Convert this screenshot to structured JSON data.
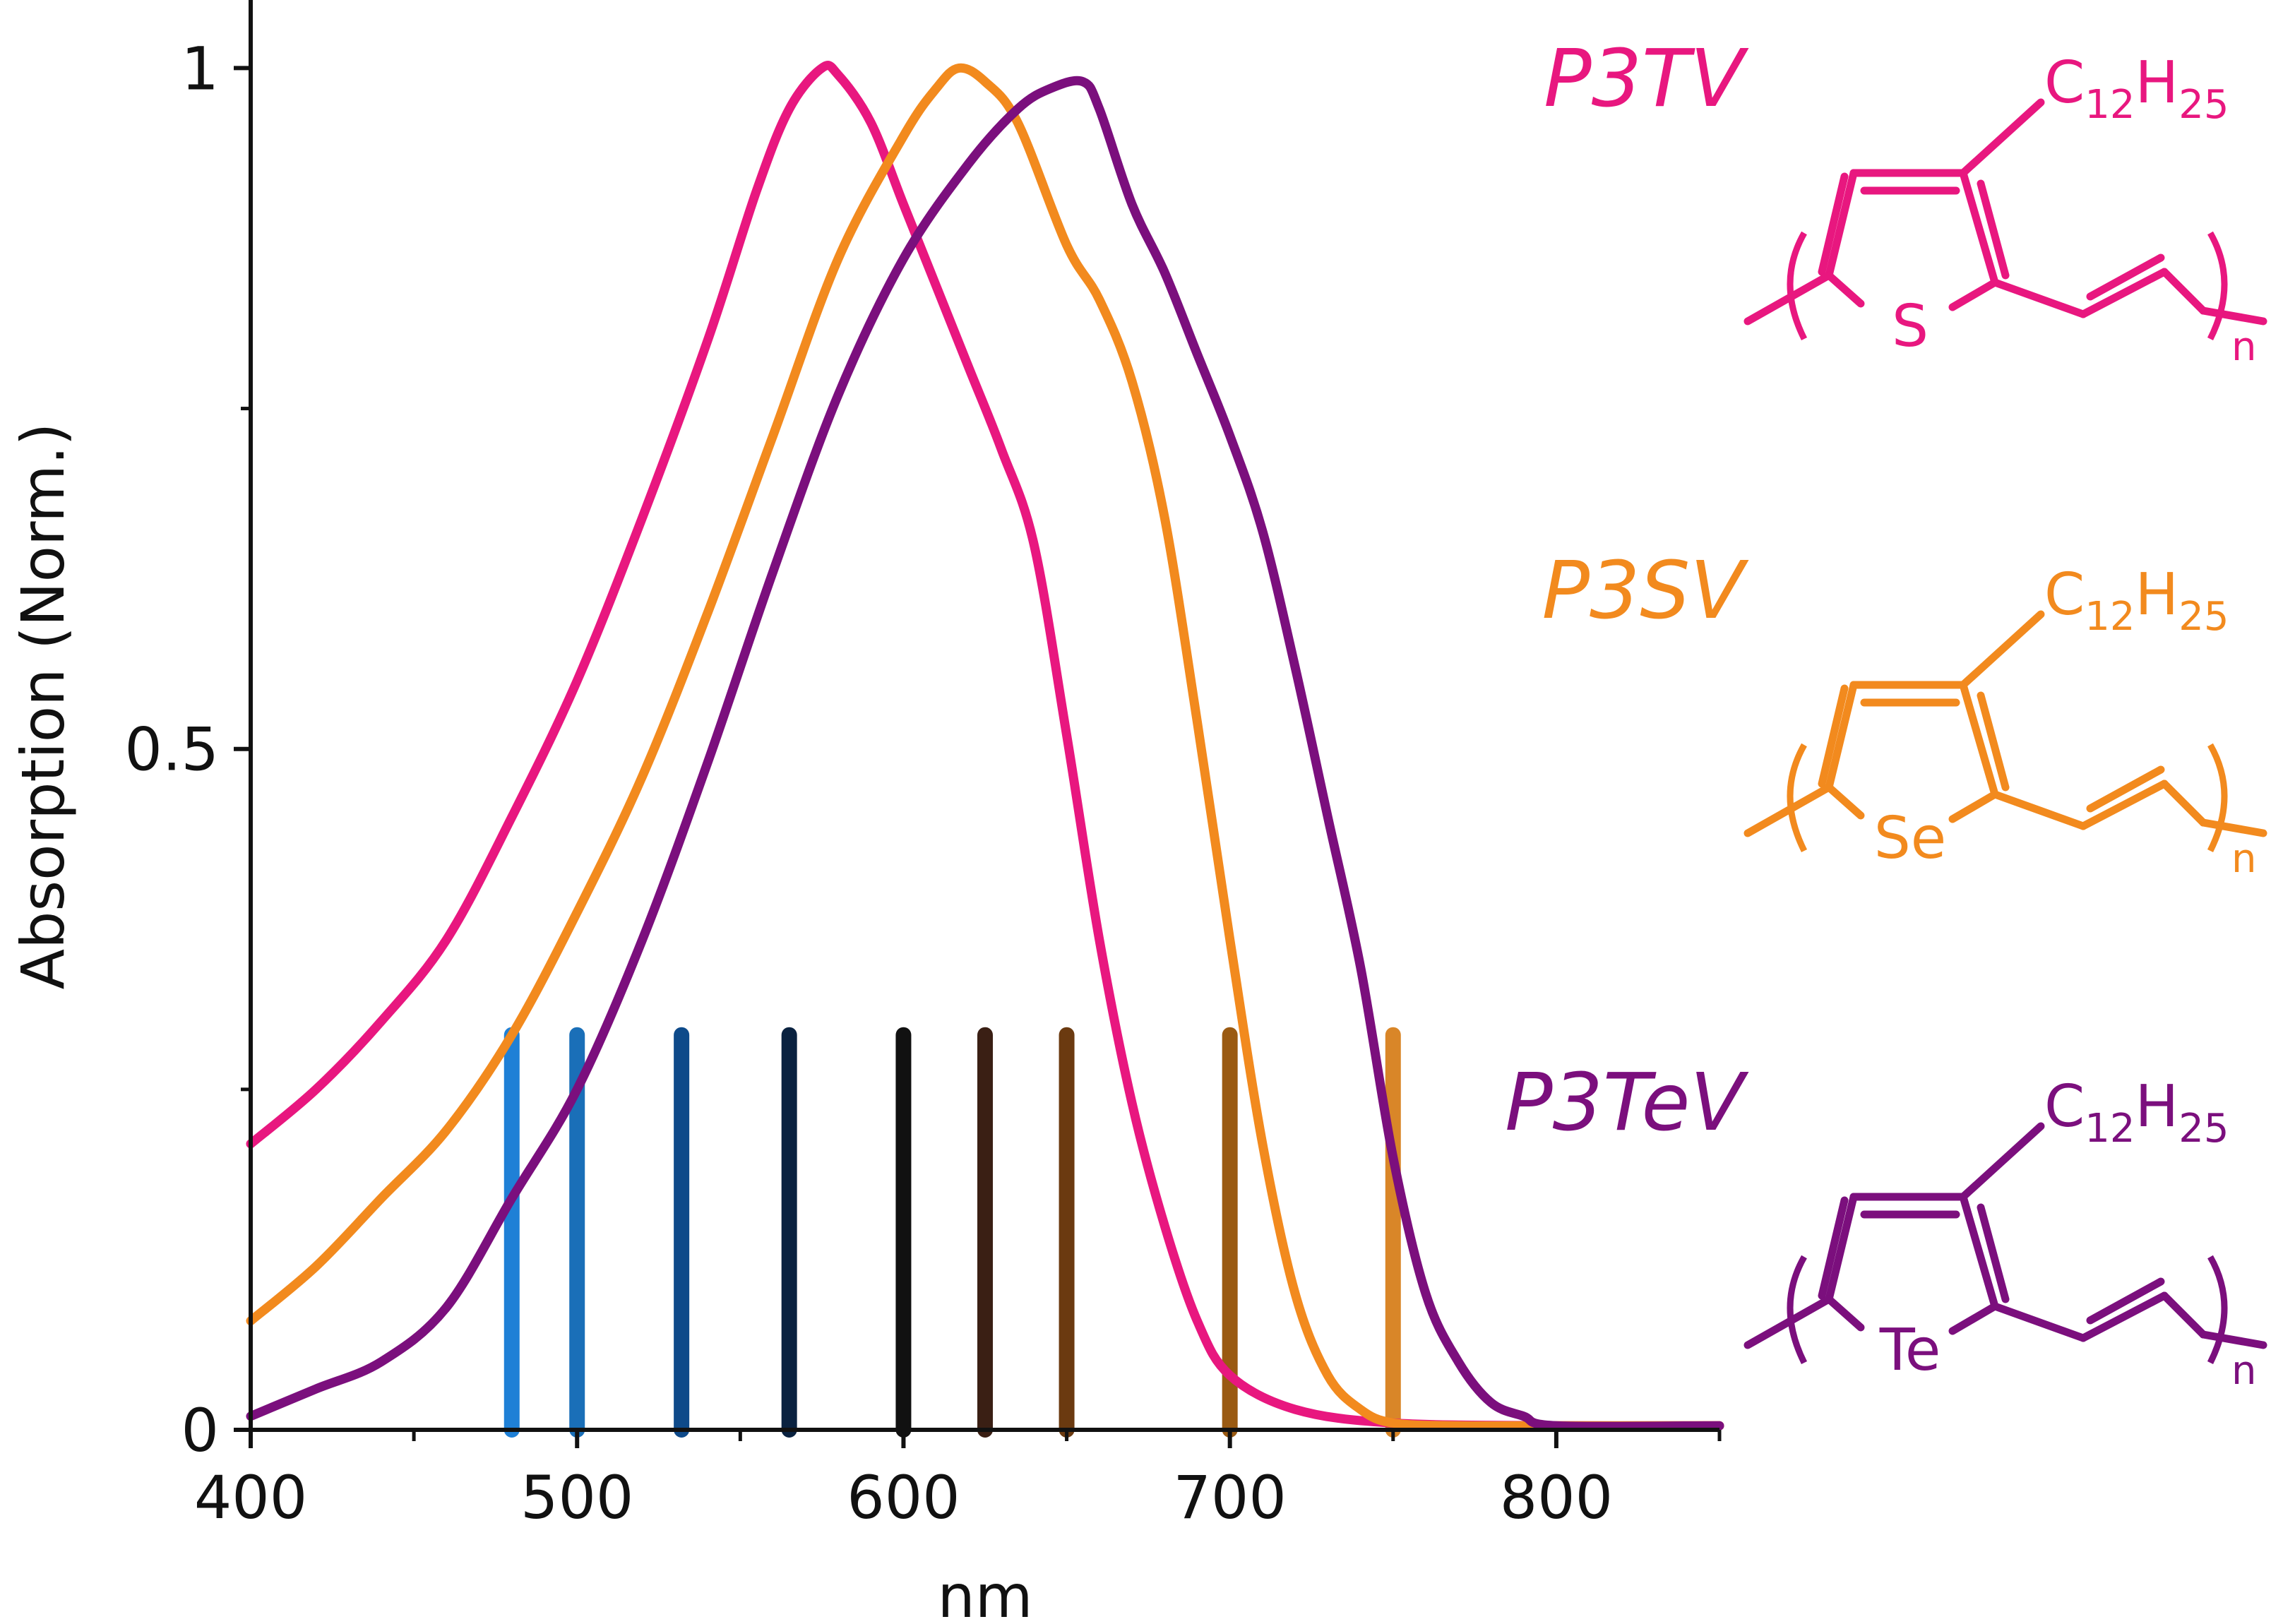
{
  "chart_data": {
    "type": "line",
    "xlabel": "nm",
    "ylabel": "Absorption (Norm.)",
    "xlim": [
      400,
      850
    ],
    "ylim": [
      0,
      1.05
    ],
    "x_ticks": [
      400,
      500,
      600,
      700,
      800
    ],
    "x_ticks_labels": [
      "400",
      "500",
      "600",
      "700",
      "800"
    ],
    "x_minor_ticks": [
      450,
      550,
      650,
      750,
      850
    ],
    "y_ticks": [
      0,
      0.5,
      1
    ],
    "y_ticks_labels": [
      "0",
      "0.5",
      "1"
    ],
    "y_minor_ticks": [
      0.25,
      0.75
    ],
    "grid": false,
    "series": [
      {
        "name": "P3TV",
        "color": "#e8177f",
        "x": [
          400,
          420,
          440,
          460,
          480,
          500,
          520,
          540,
          555,
          565,
          575,
          580,
          590,
          600,
          610,
          620,
          630,
          640,
          650,
          660,
          670,
          680,
          690,
          700,
          720,
          750,
          800,
          850
        ],
        "y": [
          0.21,
          0.25,
          0.3,
          0.36,
          0.45,
          0.55,
          0.67,
          0.8,
          0.91,
          0.97,
          1.0,
          0.995,
          0.96,
          0.9,
          0.84,
          0.78,
          0.72,
          0.65,
          0.51,
          0.36,
          0.24,
          0.15,
          0.08,
          0.04,
          0.015,
          0.005,
          0.003,
          0.003
        ]
      },
      {
        "name": "P3SV",
        "color": "#f28a1e",
        "x": [
          400,
          420,
          440,
          460,
          480,
          500,
          520,
          540,
          560,
          580,
          600,
          610,
          617,
          625,
          635,
          650,
          660,
          670,
          680,
          690,
          700,
          710,
          720,
          730,
          740,
          750,
          770,
          800,
          850
        ],
        "y": [
          0.08,
          0.12,
          0.17,
          0.22,
          0.29,
          0.38,
          0.48,
          0.6,
          0.73,
          0.86,
          0.95,
          0.985,
          1.0,
          0.99,
          0.96,
          0.87,
          0.83,
          0.77,
          0.67,
          0.52,
          0.36,
          0.21,
          0.1,
          0.04,
          0.015,
          0.005,
          0.003,
          0.003,
          0.003
        ]
      },
      {
        "name": "P3TeV",
        "color": "#7b0f7d",
        "x": [
          400,
          420,
          440,
          460,
          480,
          500,
          520,
          540,
          560,
          580,
          600,
          620,
          635,
          645,
          655,
          660,
          670,
          680,
          690,
          700,
          710,
          720,
          730,
          740,
          750,
          760,
          770,
          780,
          790,
          800,
          850
        ],
        "y": [
          0.01,
          0.03,
          0.05,
          0.09,
          0.17,
          0.25,
          0.36,
          0.49,
          0.63,
          0.76,
          0.86,
          0.93,
          0.97,
          0.985,
          0.99,
          0.97,
          0.9,
          0.85,
          0.79,
          0.73,
          0.66,
          0.56,
          0.45,
          0.34,
          0.2,
          0.1,
          0.05,
          0.02,
          0.01,
          0.003,
          0.003
        ]
      }
    ],
    "vertical_lines": [
      {
        "x": 480,
        "color": "#1f80d6"
      },
      {
        "x": 500,
        "color": "#1a6fb8"
      },
      {
        "x": 532,
        "color": "#0e4a8a"
      },
      {
        "x": 565,
        "color": "#0a2240"
      },
      {
        "x": 600,
        "color": "#111111"
      },
      {
        "x": 625,
        "color": "#3a1f14"
      },
      {
        "x": 650,
        "color": "#6b3a10"
      },
      {
        "x": 700,
        "color": "#9a5a12"
      },
      {
        "x": 750,
        "color": "#d98628"
      }
    ],
    "vertical_lines_height": 0.29,
    "annotations": [
      {
        "label": "P3TV",
        "color": "#e8177f",
        "heteroatom": "S",
        "substituent": "C",
        "substituent_sub": "12",
        "substituent_h": "H",
        "substituent_h_sub": "25",
        "repeat": "n"
      },
      {
        "label": "P3SV",
        "color": "#f28a1e",
        "heteroatom": "Se",
        "substituent": "C",
        "substituent_sub": "12",
        "substituent_h": "H",
        "substituent_h_sub": "25",
        "repeat": "n"
      },
      {
        "label": "P3TeV",
        "color": "#7b0f7d",
        "heteroatom": "Te",
        "substituent": "C",
        "substituent_sub": "12",
        "substituent_h": "H",
        "substituent_h_sub": "25",
        "repeat": "n"
      }
    ]
  }
}
